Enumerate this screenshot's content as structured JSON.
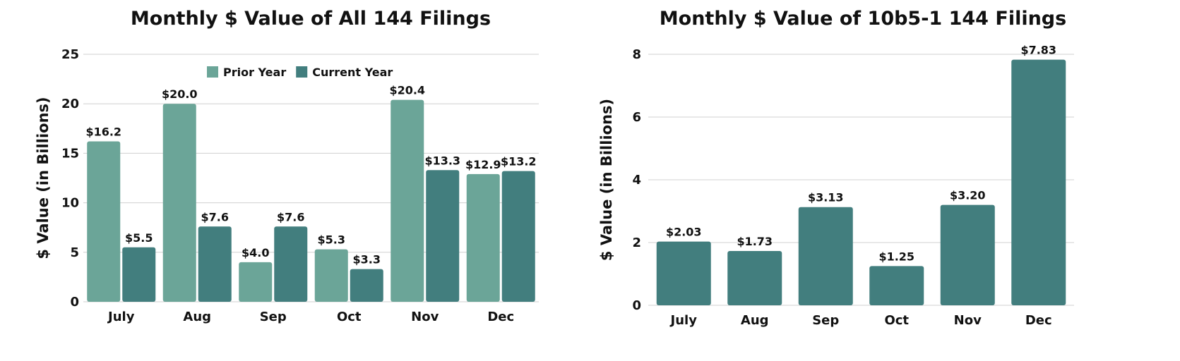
{
  "colors": {
    "prior": "#6ba598",
    "current": "#427e7e",
    "grid": "#d0d0d0",
    "text": "#111111"
  },
  "chart_data": [
    {
      "type": "bar",
      "title": "Monthly $ Value of All 144 Filings",
      "xlabel": "",
      "ylabel": "$ Value (in Billions)",
      "categories": [
        "July",
        "Aug",
        "Sep",
        "Oct",
        "Nov",
        "Dec"
      ],
      "ylim": [
        0,
        25
      ],
      "yticks": [
        0,
        5,
        10,
        15,
        20,
        25
      ],
      "grid": true,
      "legend_position": "top-center",
      "series": [
        {
          "name": "Prior Year",
          "values": [
            16.2,
            20.0,
            4.0,
            5.3,
            20.4,
            12.9
          ],
          "labels": [
            "$16.2",
            "$20.0",
            "$4.0",
            "$5.3",
            "$20.4",
            "$12.9"
          ],
          "color": "#6ba598"
        },
        {
          "name": "Current Year",
          "values": [
            5.5,
            7.6,
            7.6,
            3.3,
            13.3,
            13.2
          ],
          "labels": [
            "$5.5",
            "$7.6",
            "$7.6",
            "$3.3",
            "$13.3",
            "$13.2"
          ],
          "color": "#427e7e"
        }
      ]
    },
    {
      "type": "bar",
      "title": "Monthly $ Value of 10b5-1 144 Filings",
      "xlabel": "",
      "ylabel": "$ Value (in Billions)",
      "categories": [
        "July",
        "Aug",
        "Sep",
        "Oct",
        "Nov",
        "Dec"
      ],
      "ylim": [
        0,
        8
      ],
      "yticks": [
        0,
        2,
        4,
        6,
        8
      ],
      "grid": true,
      "legend_position": "none",
      "series": [
        {
          "values": [
            2.03,
            1.73,
            3.13,
            1.25,
            3.2,
            7.83
          ],
          "labels": [
            "$2.03",
            "$1.73",
            "$3.13",
            "$1.25",
            "$3.20",
            "$7.83"
          ],
          "color": "#427e7e"
        }
      ]
    }
  ]
}
